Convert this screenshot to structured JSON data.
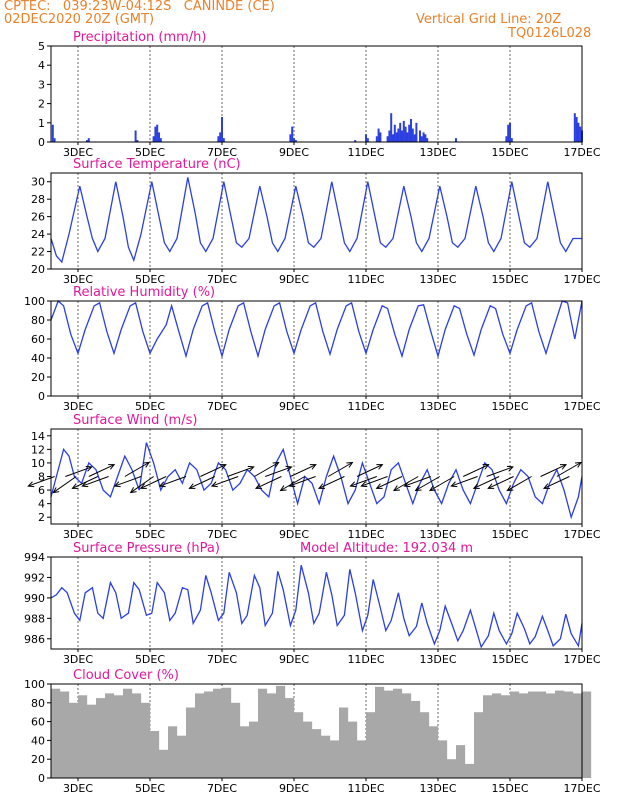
{
  "header": {
    "line1": "CPTEC:   039:23W-04:12S   CANINDE (CE)",
    "line2": "02DEC2020 20Z (GMT)",
    "right1": "Vertical Grid Line: 20Z",
    "right2": "TQ0126L028",
    "color": "#e8822b"
  },
  "colors": {
    "title": "#e0199a",
    "series": "#2c3fe0",
    "cloud": "#a8a8a8",
    "axis": "#000000"
  },
  "chart_data": [
    {
      "id": "precip",
      "type": "bar",
      "title": "Precipitation (mm/h)",
      "ylim": [
        0,
        5
      ],
      "yticks": [
        0,
        1,
        2,
        3,
        4,
        5
      ],
      "xlim": [
        2.25,
        17.0
      ],
      "x_ticks": [
        3,
        5,
        7,
        9,
        11,
        13,
        15,
        17
      ],
      "x_tick_labels": [
        "3DEC",
        "5DEC",
        "7DEC",
        "9DEC",
        "11DEC",
        "13DEC",
        "15DEC",
        "17DEC"
      ],
      "x": [
        2.3,
        2.35,
        3.25,
        3.3,
        4.6,
        4.65,
        5.1,
        5.15,
        5.2,
        5.25,
        5.3,
        6.9,
        6.95,
        7.0,
        7.05,
        8.9,
        8.95,
        9.0,
        9.05,
        10.7,
        11.0,
        11.05,
        11.3,
        11.35,
        11.4,
        11.6,
        11.65,
        11.7,
        11.75,
        11.8,
        11.85,
        11.9,
        11.95,
        12.0,
        12.05,
        12.1,
        12.15,
        12.2,
        12.25,
        12.3,
        12.35,
        12.4,
        12.5,
        12.55,
        12.6,
        12.65,
        12.7,
        13.5,
        14.9,
        14.95,
        15.0,
        15.05,
        16.8,
        16.85,
        16.9,
        16.95,
        17.0
      ],
      "values": [
        0.9,
        0.2,
        0.1,
        0.2,
        0.6,
        0.1,
        0.3,
        0.8,
        0.9,
        0.5,
        0.2,
        0.3,
        0.5,
        1.3,
        0.2,
        0.4,
        0.8,
        0.2,
        0.1,
        0.1,
        0.4,
        0.2,
        0.3,
        0.7,
        0.5,
        0.3,
        0.6,
        1.5,
        0.4,
        0.9,
        0.5,
        0.7,
        1.0,
        0.6,
        1.1,
        0.8,
        0.5,
        0.9,
        1.2,
        0.7,
        0.4,
        1.0,
        0.6,
        0.3,
        0.5,
        0.4,
        0.2,
        0.2,
        0.3,
        0.9,
        1.0,
        0.2,
        1.5,
        1.3,
        1.0,
        0.8,
        0.6
      ]
    },
    {
      "id": "temp",
      "type": "line",
      "title": "Surface Temperature (nC)",
      "ylim": [
        20,
        31
      ],
      "yticks": [
        20,
        22,
        24,
        26,
        28,
        30
      ],
      "xlim": [
        2.25,
        17.0
      ],
      "x_ticks": [
        3,
        5,
        7,
        9,
        11,
        13,
        15,
        17
      ],
      "x_tick_labels": [
        "3DEC",
        "5DEC",
        "7DEC",
        "9DEC",
        "11DEC",
        "13DEC",
        "15DEC",
        "17DEC"
      ],
      "x": [
        2.25,
        2.4,
        2.55,
        2.75,
        3.05,
        3.25,
        3.4,
        3.55,
        3.75,
        4.05,
        4.25,
        4.4,
        4.55,
        4.75,
        5.05,
        5.25,
        5.4,
        5.55,
        5.75,
        6.05,
        6.25,
        6.4,
        6.55,
        6.75,
        7.05,
        7.25,
        7.4,
        7.55,
        7.75,
        8.05,
        8.25,
        8.4,
        8.55,
        8.75,
        9.05,
        9.25,
        9.4,
        9.55,
        9.75,
        10.05,
        10.25,
        10.4,
        10.55,
        10.75,
        11.05,
        11.25,
        11.4,
        11.55,
        11.75,
        12.05,
        12.25,
        12.4,
        12.55,
        12.75,
        13.05,
        13.25,
        13.4,
        13.55,
        13.75,
        14.05,
        14.25,
        14.4,
        14.55,
        14.75,
        15.05,
        15.25,
        15.4,
        15.55,
        15.75,
        16.05,
        16.25,
        16.4,
        16.55,
        16.75,
        17.0
      ],
      "values": [
        23.5,
        21.5,
        20.8,
        24.0,
        29.5,
        26.0,
        23.5,
        22.0,
        23.5,
        30.0,
        26.0,
        22.5,
        21.0,
        24.0,
        30.0,
        26.0,
        23.0,
        22.0,
        23.5,
        30.5,
        26.5,
        23.0,
        22.0,
        23.5,
        30.0,
        26.0,
        23.0,
        22.5,
        23.5,
        29.5,
        26.0,
        23.0,
        22.0,
        23.5,
        29.5,
        26.0,
        23.0,
        22.5,
        23.5,
        30.0,
        26.0,
        23.0,
        22.0,
        23.5,
        30.0,
        26.0,
        23.0,
        22.5,
        23.5,
        29.5,
        26.0,
        23.0,
        22.0,
        23.5,
        29.5,
        26.0,
        23.0,
        22.5,
        23.5,
        29.5,
        26.0,
        23.0,
        22.0,
        23.5,
        30.0,
        26.0,
        23.0,
        22.5,
        23.5,
        30.0,
        26.0,
        23.0,
        22.0,
        23.5,
        23.5
      ]
    },
    {
      "id": "rh",
      "type": "line",
      "title": "Relative Humidity (%)",
      "ylim": [
        0,
        100
      ],
      "yticks": [
        0,
        20,
        40,
        60,
        80,
        100
      ],
      "xlim": [
        2.25,
        17.0
      ],
      "x_ticks": [
        3,
        5,
        7,
        9,
        11,
        13,
        15,
        17
      ],
      "x_tick_labels": [
        "3DEC",
        "5DEC",
        "7DEC",
        "9DEC",
        "11DEC",
        "13DEC",
        "15DEC",
        "17DEC"
      ],
      "x": [
        2.25,
        2.45,
        2.6,
        2.8,
        3.0,
        3.2,
        3.45,
        3.6,
        3.8,
        4.0,
        4.2,
        4.45,
        4.6,
        4.8,
        5.0,
        5.2,
        5.45,
        5.6,
        5.8,
        6.0,
        6.2,
        6.45,
        6.6,
        6.8,
        7.0,
        7.2,
        7.45,
        7.6,
        7.8,
        8.0,
        8.2,
        8.45,
        8.6,
        8.8,
        9.0,
        9.2,
        9.45,
        9.6,
        9.8,
        10.0,
        10.2,
        10.45,
        10.6,
        10.8,
        11.0,
        11.2,
        11.45,
        11.6,
        11.8,
        12.0,
        12.2,
        12.45,
        12.6,
        12.8,
        13.0,
        13.2,
        13.45,
        13.6,
        13.8,
        14.0,
        14.2,
        14.45,
        14.6,
        14.8,
        15.0,
        15.2,
        15.45,
        15.6,
        15.8,
        16.0,
        16.2,
        16.45,
        16.6,
        16.8,
        17.0
      ],
      "values": [
        80,
        100,
        95,
        65,
        45,
        70,
        95,
        98,
        68,
        45,
        70,
        95,
        98,
        68,
        45,
        60,
        75,
        95,
        68,
        42,
        70,
        95,
        98,
        68,
        42,
        70,
        95,
        98,
        68,
        42,
        70,
        95,
        98,
        68,
        45,
        70,
        95,
        98,
        68,
        44,
        70,
        95,
        98,
        68,
        45,
        70,
        95,
        92,
        65,
        42,
        70,
        95,
        96,
        68,
        42,
        70,
        95,
        92,
        65,
        43,
        70,
        95,
        92,
        65,
        45,
        70,
        95,
        98,
        68,
        45,
        70,
        100,
        98,
        60,
        100
      ]
    },
    {
      "id": "wind",
      "type": "line",
      "title": "Surface Wind (m/s)",
      "ylim": [
        1,
        15
      ],
      "yticks": [
        2,
        4,
        6,
        8,
        10,
        12,
        14
      ],
      "xlim": [
        2.25,
        17.0
      ],
      "x_ticks": [
        3,
        5,
        7,
        9,
        11,
        13,
        15,
        17
      ],
      "x_tick_labels": [
        "3DEC",
        "5DEC",
        "7DEC",
        "9DEC",
        "11DEC",
        "13DEC",
        "15DEC",
        "17DEC"
      ],
      "x": [
        2.25,
        2.4,
        2.6,
        2.75,
        2.9,
        3.1,
        3.3,
        3.5,
        3.7,
        3.9,
        4.1,
        4.3,
        4.5,
        4.7,
        4.9,
        5.1,
        5.3,
        5.5,
        5.7,
        5.9,
        6.1,
        6.3,
        6.5,
        6.7,
        6.9,
        7.1,
        7.3,
        7.5,
        7.7,
        7.9,
        8.1,
        8.3,
        8.5,
        8.7,
        8.9,
        9.1,
        9.3,
        9.5,
        9.7,
        9.9,
        10.1,
        10.3,
        10.5,
        10.7,
        10.9,
        11.1,
        11.3,
        11.5,
        11.7,
        11.9,
        12.1,
        12.3,
        12.5,
        12.7,
        12.9,
        13.1,
        13.3,
        13.5,
        13.7,
        13.9,
        14.1,
        14.3,
        14.5,
        14.7,
        14.9,
        15.1,
        15.3,
        15.5,
        15.7,
        15.9,
        16.1,
        16.3,
        16.5,
        16.7,
        16.9,
        17.0
      ],
      "values": [
        5,
        8,
        12,
        11,
        8,
        7,
        10,
        9,
        6,
        5,
        8,
        11,
        9,
        6,
        13,
        10,
        6,
        8,
        9,
        7,
        10,
        9,
        6,
        7,
        10,
        9,
        6,
        7,
        9,
        8,
        6,
        5,
        10,
        12,
        8,
        4,
        8,
        7,
        4,
        8,
        11,
        8,
        4,
        6,
        10,
        7,
        4,
        5,
        9,
        10,
        7,
        4,
        7,
        9,
        6,
        4,
        7,
        9,
        6,
        4,
        7,
        10,
        9,
        6,
        4,
        7,
        9,
        8,
        5,
        4,
        7,
        9,
        6,
        2,
        5,
        8
      ]
    },
    {
      "id": "pres",
      "type": "line",
      "title": "Surface Pressure (hPa)",
      "annotation": "Model Altitude: 192.034 m",
      "ylim": [
        985,
        994
      ],
      "yticks": [
        986,
        988,
        990,
        992,
        994
      ],
      "xlim": [
        2.25,
        17.0
      ],
      "x_ticks": [
        3,
        5,
        7,
        9,
        11,
        13,
        15,
        17
      ],
      "x_tick_labels": [
        "3DEC",
        "5DEC",
        "7DEC",
        "9DEC",
        "11DEC",
        "13DEC",
        "15DEC",
        "17DEC"
      ],
      "x": [
        2.25,
        2.4,
        2.55,
        2.7,
        2.9,
        3.05,
        3.2,
        3.4,
        3.55,
        3.7,
        3.9,
        4.05,
        4.2,
        4.4,
        4.55,
        4.7,
        4.9,
        5.05,
        5.2,
        5.4,
        5.55,
        5.7,
        5.9,
        6.05,
        6.2,
        6.4,
        6.55,
        6.7,
        6.9,
        7.05,
        7.2,
        7.4,
        7.55,
        7.7,
        7.9,
        8.05,
        8.2,
        8.4,
        8.55,
        8.7,
        8.9,
        9.05,
        9.2,
        9.4,
        9.55,
        9.7,
        9.9,
        10.05,
        10.2,
        10.4,
        10.55,
        10.7,
        10.9,
        11.05,
        11.2,
        11.4,
        11.55,
        11.7,
        11.9,
        12.05,
        12.2,
        12.4,
        12.55,
        12.7,
        12.9,
        13.05,
        13.2,
        13.4,
        13.55,
        13.7,
        13.9,
        14.05,
        14.2,
        14.4,
        14.55,
        14.7,
        14.9,
        15.05,
        15.2,
        15.4,
        15.55,
        15.7,
        15.9,
        16.05,
        16.2,
        16.4,
        16.55,
        16.7,
        16.9,
        17.0
      ],
      "values": [
        990,
        990.3,
        991,
        990.5,
        988.5,
        987.8,
        990.5,
        991,
        988.5,
        988,
        991.5,
        990.5,
        988,
        988.5,
        991.5,
        990.8,
        988.3,
        988.5,
        991.5,
        990.5,
        987.8,
        988.5,
        991,
        990.8,
        987.5,
        988.8,
        992.2,
        990.5,
        987.8,
        988.5,
        992.5,
        990.5,
        987.5,
        988.3,
        992.2,
        991,
        987.3,
        988.5,
        992.6,
        990.8,
        987.3,
        988.8,
        993.2,
        990.5,
        987.5,
        988.5,
        992.5,
        990.3,
        987.3,
        988.3,
        992.8,
        990.5,
        986.8,
        988.3,
        991.8,
        989,
        986.8,
        987.8,
        990.5,
        988,
        986.3,
        987.2,
        989.5,
        987.5,
        985.5,
        986.8,
        989.2,
        987.3,
        985.8,
        986.8,
        988.8,
        987,
        985.2,
        986.3,
        988.5,
        986.8,
        985.5,
        986.5,
        988.5,
        987,
        985.5,
        986.2,
        988.2,
        986.8,
        985.3,
        986,
        988.4,
        986.5,
        985.3,
        987.5
      ]
    },
    {
      "id": "cloud",
      "type": "area",
      "title": "Cloud Cover (%)",
      "ylim": [
        0,
        100
      ],
      "yticks": [
        0,
        20,
        40,
        60,
        80,
        100
      ],
      "xlim": [
        2.25,
        17.0
      ],
      "x_ticks": [
        3,
        5,
        7,
        9,
        11,
        13,
        15,
        17
      ],
      "x_tick_labels": [
        "3DEC",
        "5DEC",
        "7DEC",
        "9DEC",
        "11DEC",
        "13DEC",
        "15DEC",
        "17DEC"
      ],
      "x": [
        2.25,
        2.5,
        2.75,
        3.0,
        3.25,
        3.5,
        3.75,
        4.0,
        4.25,
        4.5,
        4.75,
        5.0,
        5.25,
        5.5,
        5.75,
        6.0,
        6.25,
        6.5,
        6.75,
        7.0,
        7.25,
        7.5,
        7.75,
        8.0,
        8.25,
        8.5,
        8.75,
        9.0,
        9.25,
        9.5,
        9.75,
        10.0,
        10.25,
        10.5,
        10.75,
        11.0,
        11.25,
        11.5,
        11.75,
        12.0,
        12.25,
        12.5,
        12.75,
        13.0,
        13.25,
        13.5,
        13.75,
        14.0,
        14.25,
        14.5,
        14.75,
        15.0,
        15.25,
        15.5,
        15.75,
        16.0,
        16.25,
        16.5,
        16.75,
        17.0
      ],
      "values": [
        95,
        92,
        80,
        88,
        78,
        85,
        90,
        88,
        95,
        90,
        80,
        50,
        30,
        55,
        45,
        75,
        90,
        92,
        95,
        96,
        80,
        55,
        60,
        95,
        90,
        98,
        85,
        70,
        60,
        52,
        45,
        40,
        75,
        60,
        40,
        70,
        97,
        93,
        95,
        90,
        82,
        70,
        55,
        40,
        20,
        35,
        15,
        70,
        88,
        90,
        88,
        92,
        90,
        92,
        92,
        90,
        93,
        92,
        90,
        92
      ]
    }
  ],
  "wind_barbs": [
    {
      "x": 2.35,
      "a": 200
    },
    {
      "x": 2.65,
      "a": 20
    },
    {
      "x": 2.95,
      "a": 215
    },
    {
      "x": 3.3,
      "a": 25
    },
    {
      "x": 3.55,
      "a": 205
    },
    {
      "x": 3.85,
      "a": 200
    },
    {
      "x": 4.3,
      "a": 30
    },
    {
      "x": 4.75,
      "a": 200
    },
    {
      "x": 5.1,
      "a": 215
    },
    {
      "x": 5.45,
      "a": 205
    },
    {
      "x": 6.0,
      "a": 200
    },
    {
      "x": 6.4,
      "a": 25
    },
    {
      "x": 6.8,
      "a": 205
    },
    {
      "x": 7.15,
      "a": 20
    },
    {
      "x": 7.45,
      "a": 200
    },
    {
      "x": 7.9,
      "a": 30
    },
    {
      "x": 8.2,
      "a": 20
    },
    {
      "x": 8.65,
      "a": 205
    },
    {
      "x": 8.9,
      "a": 25
    },
    {
      "x": 9.3,
      "a": 210
    },
    {
      "x": 9.6,
      "a": 200
    },
    {
      "x": 9.95,
      "a": 30
    },
    {
      "x": 10.4,
      "a": 205
    },
    {
      "x": 10.75,
      "a": 25
    },
    {
      "x": 11.3,
      "a": 200
    },
    {
      "x": 11.6,
      "a": 200
    },
    {
      "x": 12.0,
      "a": 205
    },
    {
      "x": 12.45,
      "a": 210
    },
    {
      "x": 12.8,
      "a": 200
    },
    {
      "x": 13.05,
      "a": 210
    },
    {
      "x": 13.45,
      "a": 210
    },
    {
      "x": 13.7,
      "a": 25
    },
    {
      "x": 14.1,
      "a": 200
    },
    {
      "x": 14.35,
      "a": 20
    },
    {
      "x": 14.7,
      "a": 205
    },
    {
      "x": 15.1,
      "a": 205
    },
    {
      "x": 15.6,
      "a": 210
    },
    {
      "x": 15.85,
      "a": 25
    },
    {
      "x": 16.3,
      "a": 30
    },
    {
      "x": 16.65,
      "a": 205
    }
  ]
}
